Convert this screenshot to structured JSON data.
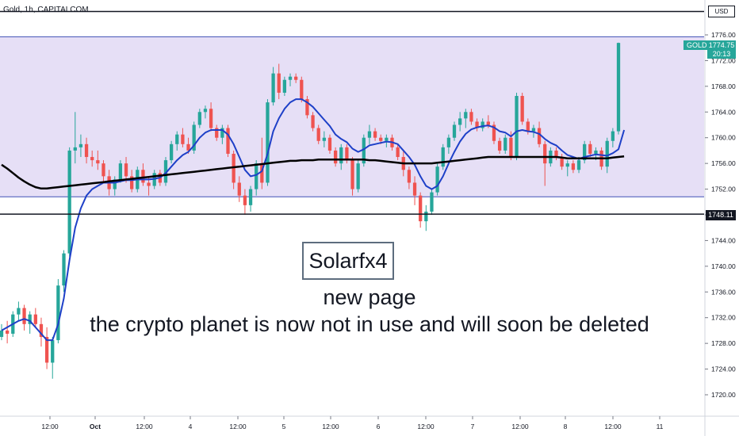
{
  "header": {
    "title": "Gold, 1h, CAPITALCOM",
    "currency": "USD"
  },
  "price_tag": {
    "symbol": "GOLD",
    "price": "1774.75",
    "countdown": "20:13"
  },
  "level_label": "1748.11",
  "annotation": {
    "brand": "Solarfx4",
    "line1": "new page",
    "line2": "the crypto planet is now not in use and will soon be deleted"
  },
  "colors": {
    "up": "#26a69a",
    "down": "#ef5350",
    "zone_fill": "#e3dbf5",
    "zone_border": "#3f51b5",
    "ema_fast": "#1e40c8",
    "ema_slow": "#000000"
  },
  "chart_data": {
    "type": "candlestick",
    "title": "Gold, 1h, CAPITALCOM",
    "ylim": [
      1718,
      1778
    ],
    "yticks": [
      1720,
      1724,
      1728,
      1732,
      1736,
      1740,
      1744,
      1748,
      1752,
      1756,
      1760,
      1764,
      1768,
      1772,
      1776
    ],
    "xticks": [
      "12:00",
      "Oct",
      "12:00",
      "4",
      "12:00",
      "5",
      "12:00",
      "6",
      "12:00",
      "7",
      "12:00",
      "8",
      "12:00",
      "11"
    ],
    "grid": false,
    "zone": {
      "low": 1750.8,
      "high": 1775.7
    },
    "horizontal_levels": [
      1748.11,
      1779.5
    ],
    "last_price": 1774.75,
    "candles": [
      {
        "o": 1729.0,
        "h": 1731.0,
        "l": 1728.5,
        "c": 1730.0
      },
      {
        "o": 1730.0,
        "h": 1731.5,
        "l": 1728.0,
        "c": 1729.5
      },
      {
        "o": 1729.5,
        "h": 1733.0,
        "l": 1729.0,
        "c": 1732.5
      },
      {
        "o": 1732.5,
        "h": 1734.5,
        "l": 1731.5,
        "c": 1733.5
      },
      {
        "o": 1733.5,
        "h": 1734.0,
        "l": 1730.0,
        "c": 1731.0
      },
      {
        "o": 1731.0,
        "h": 1733.0,
        "l": 1729.5,
        "c": 1732.5
      },
      {
        "o": 1732.5,
        "h": 1733.5,
        "l": 1730.5,
        "c": 1731.0
      },
      {
        "o": 1731.0,
        "h": 1732.0,
        "l": 1727.5,
        "c": 1729.0
      },
      {
        "o": 1729.0,
        "h": 1730.5,
        "l": 1724.0,
        "c": 1725.0
      },
      {
        "o": 1725.0,
        "h": 1729.0,
        "l": 1722.5,
        "c": 1728.5
      },
      {
        "o": 1728.5,
        "h": 1738.0,
        "l": 1728.0,
        "c": 1737.0
      },
      {
        "o": 1737.0,
        "h": 1742.5,
        "l": 1736.0,
        "c": 1742.0
      },
      {
        "o": 1742.0,
        "h": 1758.5,
        "l": 1741.5,
        "c": 1758.0
      },
      {
        "o": 1758.0,
        "h": 1764.0,
        "l": 1756.0,
        "c": 1758.5
      },
      {
        "o": 1758.5,
        "h": 1760.5,
        "l": 1757.0,
        "c": 1759.0
      },
      {
        "o": 1759.0,
        "h": 1760.0,
        "l": 1756.0,
        "c": 1757.0
      },
      {
        "o": 1757.0,
        "h": 1758.0,
        "l": 1755.5,
        "c": 1756.5
      },
      {
        "o": 1756.5,
        "h": 1758.0,
        "l": 1755.0,
        "c": 1756.0
      },
      {
        "o": 1756.0,
        "h": 1756.5,
        "l": 1753.0,
        "c": 1754.0
      },
      {
        "o": 1754.0,
        "h": 1755.0,
        "l": 1751.0,
        "c": 1752.0
      },
      {
        "o": 1752.0,
        "h": 1754.0,
        "l": 1751.0,
        "c": 1753.5
      },
      {
        "o": 1753.5,
        "h": 1756.5,
        "l": 1753.0,
        "c": 1756.0
      },
      {
        "o": 1756.0,
        "h": 1757.0,
        "l": 1753.0,
        "c": 1754.0
      },
      {
        "o": 1754.0,
        "h": 1755.0,
        "l": 1751.5,
        "c": 1752.0
      },
      {
        "o": 1752.0,
        "h": 1755.5,
        "l": 1751.5,
        "c": 1755.0
      },
      {
        "o": 1755.0,
        "h": 1756.0,
        "l": 1752.5,
        "c": 1753.0
      },
      {
        "o": 1753.0,
        "h": 1754.0,
        "l": 1751.0,
        "c": 1752.5
      },
      {
        "o": 1752.5,
        "h": 1755.0,
        "l": 1752.0,
        "c": 1754.5
      },
      {
        "o": 1754.5,
        "h": 1755.0,
        "l": 1752.5,
        "c": 1753.0
      },
      {
        "o": 1753.0,
        "h": 1757.0,
        "l": 1752.5,
        "c": 1756.5
      },
      {
        "o": 1756.5,
        "h": 1759.5,
        "l": 1756.0,
        "c": 1759.0
      },
      {
        "o": 1759.0,
        "h": 1761.0,
        "l": 1758.0,
        "c": 1760.5
      },
      {
        "o": 1760.5,
        "h": 1761.5,
        "l": 1758.5,
        "c": 1759.0
      },
      {
        "o": 1759.0,
        "h": 1760.0,
        "l": 1757.5,
        "c": 1758.0
      },
      {
        "o": 1758.0,
        "h": 1762.5,
        "l": 1757.5,
        "c": 1762.0
      },
      {
        "o": 1762.0,
        "h": 1764.5,
        "l": 1761.5,
        "c": 1764.0
      },
      {
        "o": 1764.0,
        "h": 1765.0,
        "l": 1763.0,
        "c": 1764.5
      },
      {
        "o": 1764.5,
        "h": 1765.5,
        "l": 1761.0,
        "c": 1761.5
      },
      {
        "o": 1761.5,
        "h": 1762.0,
        "l": 1759.5,
        "c": 1760.0
      },
      {
        "o": 1760.0,
        "h": 1762.0,
        "l": 1759.0,
        "c": 1761.5
      },
      {
        "o": 1761.5,
        "h": 1762.0,
        "l": 1757.0,
        "c": 1757.5
      },
      {
        "o": 1757.5,
        "h": 1758.0,
        "l": 1752.0,
        "c": 1753.0
      },
      {
        "o": 1753.0,
        "h": 1754.0,
        "l": 1750.0,
        "c": 1751.0
      },
      {
        "o": 1751.0,
        "h": 1752.0,
        "l": 1748.0,
        "c": 1749.5
      },
      {
        "o": 1749.5,
        "h": 1752.5,
        "l": 1748.5,
        "c": 1752.0
      },
      {
        "o": 1752.0,
        "h": 1756.5,
        "l": 1751.0,
        "c": 1756.0
      },
      {
        "o": 1756.0,
        "h": 1760.0,
        "l": 1752.0,
        "c": 1753.0
      },
      {
        "o": 1753.0,
        "h": 1766.0,
        "l": 1752.5,
        "c": 1765.5
      },
      {
        "o": 1765.5,
        "h": 1771.0,
        "l": 1765.0,
        "c": 1770.0
      },
      {
        "o": 1770.0,
        "h": 1771.5,
        "l": 1766.0,
        "c": 1767.0
      },
      {
        "o": 1767.0,
        "h": 1769.5,
        "l": 1766.5,
        "c": 1769.0
      },
      {
        "o": 1769.0,
        "h": 1770.0,
        "l": 1768.0,
        "c": 1769.5
      },
      {
        "o": 1769.5,
        "h": 1770.0,
        "l": 1768.5,
        "c": 1769.0
      },
      {
        "o": 1769.0,
        "h": 1769.5,
        "l": 1765.5,
        "c": 1766.0
      },
      {
        "o": 1766.0,
        "h": 1766.5,
        "l": 1763.0,
        "c": 1763.5
      },
      {
        "o": 1763.5,
        "h": 1764.0,
        "l": 1761.0,
        "c": 1761.5
      },
      {
        "o": 1761.5,
        "h": 1762.0,
        "l": 1759.0,
        "c": 1759.5
      },
      {
        "o": 1759.5,
        "h": 1761.0,
        "l": 1758.5,
        "c": 1760.0
      },
      {
        "o": 1760.0,
        "h": 1760.5,
        "l": 1757.5,
        "c": 1758.0
      },
      {
        "o": 1758.0,
        "h": 1758.5,
        "l": 1755.5,
        "c": 1756.0
      },
      {
        "o": 1756.0,
        "h": 1759.0,
        "l": 1755.0,
        "c": 1758.5
      },
      {
        "o": 1758.5,
        "h": 1759.0,
        "l": 1756.0,
        "c": 1756.5
      },
      {
        "o": 1756.5,
        "h": 1757.0,
        "l": 1751.0,
        "c": 1752.0
      },
      {
        "o": 1752.0,
        "h": 1756.5,
        "l": 1751.5,
        "c": 1756.0
      },
      {
        "o": 1756.0,
        "h": 1760.5,
        "l": 1755.5,
        "c": 1760.0
      },
      {
        "o": 1760.0,
        "h": 1762.0,
        "l": 1759.0,
        "c": 1761.0
      },
      {
        "o": 1761.0,
        "h": 1761.5,
        "l": 1759.5,
        "c": 1760.0
      },
      {
        "o": 1760.0,
        "h": 1760.5,
        "l": 1759.0,
        "c": 1759.5
      },
      {
        "o": 1759.5,
        "h": 1760.5,
        "l": 1758.5,
        "c": 1760.0
      },
      {
        "o": 1760.0,
        "h": 1760.5,
        "l": 1758.0,
        "c": 1758.5
      },
      {
        "o": 1758.5,
        "h": 1759.0,
        "l": 1756.5,
        "c": 1757.0
      },
      {
        "o": 1757.0,
        "h": 1758.0,
        "l": 1754.0,
        "c": 1755.0
      },
      {
        "o": 1755.0,
        "h": 1755.5,
        "l": 1752.0,
        "c": 1753.0
      },
      {
        "o": 1753.0,
        "h": 1754.0,
        "l": 1749.5,
        "c": 1751.0
      },
      {
        "o": 1751.0,
        "h": 1751.5,
        "l": 1746.0,
        "c": 1747.0
      },
      {
        "o": 1747.0,
        "h": 1749.5,
        "l": 1745.5,
        "c": 1748.5
      },
      {
        "o": 1748.5,
        "h": 1752.0,
        "l": 1748.0,
        "c": 1751.5
      },
      {
        "o": 1751.5,
        "h": 1756.0,
        "l": 1751.0,
        "c": 1755.5
      },
      {
        "o": 1755.5,
        "h": 1759.0,
        "l": 1755.0,
        "c": 1758.5
      },
      {
        "o": 1758.5,
        "h": 1760.5,
        "l": 1757.5,
        "c": 1760.0
      },
      {
        "o": 1760.0,
        "h": 1762.5,
        "l": 1759.5,
        "c": 1762.0
      },
      {
        "o": 1762.0,
        "h": 1764.0,
        "l": 1761.0,
        "c": 1763.0
      },
      {
        "o": 1763.0,
        "h": 1764.5,
        "l": 1761.5,
        "c": 1764.0
      },
      {
        "o": 1764.0,
        "h": 1764.5,
        "l": 1762.0,
        "c": 1762.5
      },
      {
        "o": 1762.5,
        "h": 1763.0,
        "l": 1761.0,
        "c": 1761.5
      },
      {
        "o": 1761.5,
        "h": 1763.0,
        "l": 1761.0,
        "c": 1762.5
      },
      {
        "o": 1762.5,
        "h": 1763.5,
        "l": 1761.5,
        "c": 1762.0
      },
      {
        "o": 1762.0,
        "h": 1762.5,
        "l": 1759.0,
        "c": 1759.5
      },
      {
        "o": 1759.5,
        "h": 1760.0,
        "l": 1757.5,
        "c": 1758.0
      },
      {
        "o": 1758.0,
        "h": 1760.5,
        "l": 1757.5,
        "c": 1760.0
      },
      {
        "o": 1760.0,
        "h": 1761.0,
        "l": 1756.5,
        "c": 1757.0
      },
      {
        "o": 1757.0,
        "h": 1767.0,
        "l": 1756.5,
        "c": 1766.5
      },
      {
        "o": 1766.5,
        "h": 1767.0,
        "l": 1762.0,
        "c": 1762.5
      },
      {
        "o": 1762.5,
        "h": 1763.0,
        "l": 1760.5,
        "c": 1761.0
      },
      {
        "o": 1761.0,
        "h": 1762.0,
        "l": 1760.0,
        "c": 1761.5
      },
      {
        "o": 1761.5,
        "h": 1762.5,
        "l": 1758.5,
        "c": 1759.0
      },
      {
        "o": 1759.0,
        "h": 1759.5,
        "l": 1752.5,
        "c": 1756.0
      },
      {
        "o": 1756.0,
        "h": 1758.5,
        "l": 1755.5,
        "c": 1758.0
      },
      {
        "o": 1758.0,
        "h": 1758.5,
        "l": 1756.5,
        "c": 1757.0
      },
      {
        "o": 1757.0,
        "h": 1757.5,
        "l": 1755.0,
        "c": 1755.5
      },
      {
        "o": 1755.5,
        "h": 1756.5,
        "l": 1754.0,
        "c": 1756.0
      },
      {
        "o": 1756.0,
        "h": 1756.5,
        "l": 1754.5,
        "c": 1755.0
      },
      {
        "o": 1755.0,
        "h": 1757.0,
        "l": 1754.5,
        "c": 1756.5
      },
      {
        "o": 1756.5,
        "h": 1759.5,
        "l": 1756.0,
        "c": 1759.0
      },
      {
        "o": 1759.0,
        "h": 1759.5,
        "l": 1757.0,
        "c": 1757.5
      },
      {
        "o": 1757.5,
        "h": 1758.5,
        "l": 1756.5,
        "c": 1758.0
      },
      {
        "o": 1758.0,
        "h": 1758.5,
        "l": 1755.0,
        "c": 1755.5
      },
      {
        "o": 1755.5,
        "h": 1760.0,
        "l": 1754.5,
        "c": 1759.5
      },
      {
        "o": 1759.5,
        "h": 1761.5,
        "l": 1758.5,
        "c": 1761.0
      },
      {
        "o": 1761.0,
        "h": 1774.8,
        "l": 1760.5,
        "c": 1774.75
      }
    ],
    "series": [
      {
        "name": "",
        "color": "#1e40c8",
        "x_start": 0,
        "values": [
          1730,
          1730.5,
          1731,
          1731.5,
          1731.8,
          1731.5,
          1730.5,
          1729.5,
          1728.5,
          1728.5,
          1731,
          1735,
          1741,
          1746,
          1749,
          1751,
          1752,
          1752.5,
          1753,
          1753,
          1753,
          1753.2,
          1753.4,
          1753.4,
          1753.5,
          1753.5,
          1753.5,
          1753.6,
          1753.8,
          1754.5,
          1755.5,
          1756.5,
          1757.3,
          1757.8,
          1758.8,
          1760,
          1760.8,
          1761.2,
          1761.2,
          1761.2,
          1760.5,
          1759,
          1757,
          1755,
          1754,
          1754.2,
          1754.8,
          1757.5,
          1761,
          1763,
          1764.5,
          1765.5,
          1766,
          1766,
          1765.5,
          1764.8,
          1763.8,
          1762.8,
          1761.8,
          1760.5,
          1759.8,
          1759.3,
          1758.3,
          1757.8,
          1758.2,
          1758.8,
          1759,
          1759.2,
          1759.4,
          1759.3,
          1759,
          1758,
          1757,
          1755.8,
          1754,
          1752.5,
          1752,
          1752.5,
          1754,
          1756,
          1757.8,
          1759.4,
          1760.6,
          1761.3,
          1761.6,
          1761.8,
          1761.9,
          1761.6,
          1761,
          1760.8,
          1760.2,
          1761,
          1761.2,
          1761,
          1760.9,
          1760.6,
          1759.8,
          1759.2,
          1758.8,
          1758,
          1757.3,
          1757,
          1756.7,
          1757,
          1757.2,
          1757.4,
          1757.3,
          1757.2,
          1757.6,
          1758.2,
          1761.2
        ]
      },
      {
        "name": "",
        "color": "#000000",
        "x_start": 0,
        "values": [
          1755.8,
          1755.2,
          1754.5,
          1753.8,
          1753.2,
          1752.7,
          1752.3,
          1752.1,
          1752.1,
          1752.2,
          1752.3,
          1752.4,
          1752.5,
          1752.6,
          1752.7,
          1752.8,
          1752.9,
          1753,
          1753.1,
          1753.2,
          1753.3,
          1753.4,
          1753.5,
          1753.6,
          1753.7,
          1753.8,
          1753.9,
          1754,
          1754.1,
          1754.2,
          1754.3,
          1754.4,
          1754.5,
          1754.6,
          1754.7,
          1754.8,
          1754.9,
          1755,
          1755.1,
          1755.2,
          1755.3,
          1755.4,
          1755.5,
          1755.6,
          1755.7,
          1755.8,
          1755.9,
          1756,
          1756.1,
          1756.2,
          1756.3,
          1756.4,
          1756.4,
          1756.5,
          1756.5,
          1756.5,
          1756.6,
          1756.6,
          1756.6,
          1756.6,
          1756.6,
          1756.6,
          1756.6,
          1756.6,
          1756.6,
          1756.5,
          1756.5,
          1756.4,
          1756.3,
          1756.2,
          1756.1,
          1756,
          1756,
          1756,
          1756,
          1756,
          1756,
          1756.1,
          1756.2,
          1756.3,
          1756.4,
          1756.5,
          1756.6,
          1756.7,
          1756.8,
          1756.9,
          1757,
          1757,
          1757,
          1757,
          1757,
          1757,
          1757,
          1757,
          1757,
          1757,
          1757,
          1757,
          1757,
          1756.9,
          1756.8,
          1756.8,
          1756.8,
          1756.8,
          1756.8,
          1756.8,
          1756.8,
          1756.8,
          1756.9,
          1757,
          1757.1
        ]
      }
    ]
  }
}
